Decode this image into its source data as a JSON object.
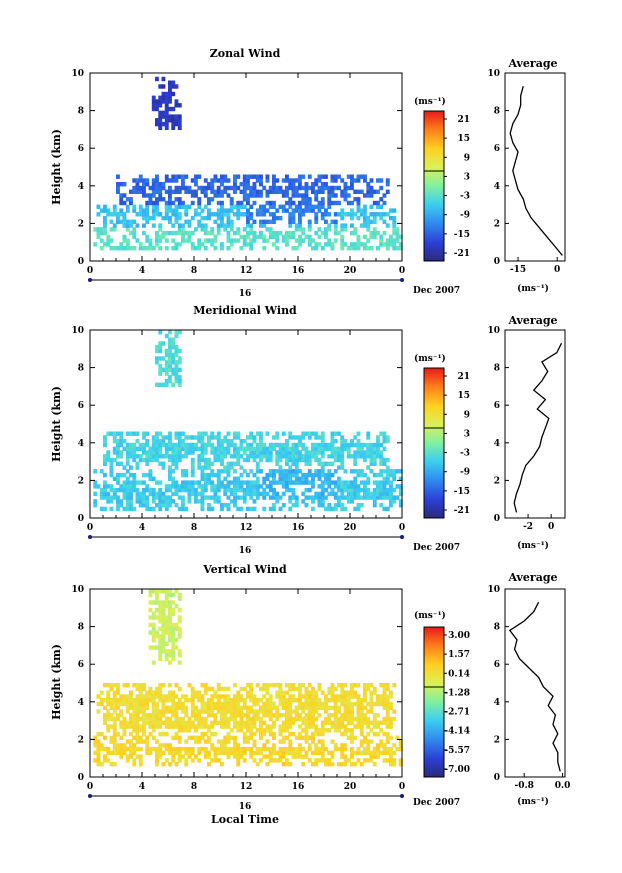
{
  "chart_data": [
    {
      "type": "heatmap",
      "title": "Zonal Wind",
      "xlabel": "",
      "ylabel": "Height (km)",
      "xlim": [
        0,
        24
      ],
      "ylim": [
        0,
        10
      ],
      "xticks": [
        "0",
        "4",
        "8",
        "12",
        "16",
        "20",
        "0"
      ],
      "yticks": [
        "0",
        "2",
        "4",
        "6",
        "8",
        "10"
      ],
      "date_tick": "16",
      "date_label": "Dec 2007",
      "colorbar": {
        "unit": "(ms⁻¹)",
        "ticks": [
          "21",
          "15",
          "9",
          "3",
          "-3",
          "-9",
          "-15",
          "-21"
        ],
        "range": [
          -24,
          24
        ]
      },
      "blobs": [
        {
          "x0": 4.6,
          "x1": 6.8,
          "y0": 7.0,
          "y1": 9.6,
          "v": -20
        },
        {
          "x0": 2.0,
          "x1": 23.0,
          "y0": 3.0,
          "y1": 4.6,
          "v": -15
        },
        {
          "x0": 12.0,
          "x1": 19.0,
          "y0": 1.8,
          "y1": 4.5,
          "v": -13
        },
        {
          "x0": 0.5,
          "x1": 23.5,
          "y0": 1.6,
          "y1": 3.0,
          "v": -7
        },
        {
          "x0": 0.2,
          "x1": 23.8,
          "y0": 0.5,
          "y1": 1.6,
          "v": -3
        }
      ],
      "average": {
        "title": "Average",
        "xlabel": "(ms⁻¹)",
        "xlim": [
          -20,
          3
        ],
        "xticks": [
          "-15",
          "0"
        ],
        "height": [
          0.3,
          0.8,
          1.3,
          1.8,
          2.3,
          2.8,
          3.3,
          3.8,
          4.3,
          4.8,
          5.3,
          5.8,
          6.3,
          6.8,
          7.3,
          7.8,
          8.3,
          8.8,
          9.3
        ],
        "values": [
          2,
          -1,
          -4,
          -7,
          -10,
          -12,
          -13,
          -15,
          -16,
          -17,
          -16,
          -15,
          -17,
          -18,
          -17,
          -15,
          -14,
          -14,
          -13
        ]
      }
    },
    {
      "type": "heatmap",
      "title": "Meridional Wind",
      "xlabel": "",
      "ylabel": "Height (km)",
      "xlim": [
        0,
        24
      ],
      "ylim": [
        0,
        10
      ],
      "xticks": [
        "0",
        "4",
        "8",
        "12",
        "16",
        "20",
        "0"
      ],
      "yticks": [
        "0",
        "2",
        "4",
        "6",
        "8",
        "10"
      ],
      "date_tick": "16",
      "date_label": "Dec 2007",
      "colorbar": {
        "unit": "(ms⁻¹)",
        "ticks": [
          "21",
          "15",
          "9",
          "3",
          "-3",
          "-9",
          "-15",
          "-21"
        ],
        "range": [
          -24,
          24
        ]
      },
      "blobs": [
        {
          "x0": 5.0,
          "x1": 7.0,
          "y0": 7.0,
          "y1": 9.8,
          "v": -4
        },
        {
          "x0": 1.0,
          "x1": 23.0,
          "y0": 2.5,
          "y1": 4.5,
          "v": -5
        },
        {
          "x0": 13.0,
          "x1": 19.0,
          "y0": 1.0,
          "y1": 4.5,
          "v": -8
        },
        {
          "x0": 0.2,
          "x1": 23.8,
          "y0": 0.3,
          "y1": 2.5,
          "v": -6
        }
      ],
      "average": {
        "title": "Average",
        "xlabel": "(ms⁻¹)",
        "xlim": [
          -4,
          1.2
        ],
        "xticks": [
          "-2",
          "0"
        ],
        "height": [
          0.3,
          0.8,
          1.3,
          1.8,
          2.3,
          2.8,
          3.3,
          3.8,
          4.3,
          4.8,
          5.3,
          5.8,
          6.3,
          6.8,
          7.3,
          7.8,
          8.3,
          8.8,
          9.3
        ],
        "values": [
          -3,
          -3.2,
          -3,
          -2.7,
          -2.5,
          -2.2,
          -1.5,
          -1.0,
          -0.8,
          -0.5,
          -0.2,
          -1.2,
          -0.5,
          -1.5,
          -0.8,
          -0.3,
          -0.8,
          0.5,
          0.9
        ]
      }
    },
    {
      "type": "heatmap",
      "title": "Vertical Wind",
      "xlabel": "Local Time",
      "ylabel": "Height (km)",
      "xlim": [
        0,
        24
      ],
      "ylim": [
        0,
        10
      ],
      "xticks": [
        "0",
        "4",
        "8",
        "12",
        "16",
        "20",
        "0"
      ],
      "yticks": [
        "0",
        "2",
        "4",
        "6",
        "8",
        "10"
      ],
      "date_tick": "16",
      "date_label": "Dec 2007",
      "colorbar": {
        "unit": "(ms⁻¹)",
        "ticks": [
          "3.00",
          "1.57",
          "0.14",
          "-1.28",
          "-2.71",
          "-4.14",
          "-5.57",
          "-7.00"
        ],
        "range": [
          -7.7,
          3.7
        ]
      },
      "blobs": [
        {
          "x0": 4.5,
          "x1": 7.0,
          "y0": 6.0,
          "y1": 9.8,
          "v": -0.8
        },
        {
          "x0": 0.5,
          "x1": 23.5,
          "y0": 2.0,
          "y1": 5.0,
          "v": 0.3
        },
        {
          "x0": 0.2,
          "x1": 23.8,
          "y0": 0.5,
          "y1": 2.0,
          "v": 0.5
        }
      ],
      "average": {
        "title": "Average",
        "xlabel": "(ms⁻¹)",
        "xlim": [
          -1.2,
          0.05
        ],
        "xticks": [
          "-0.8",
          "0.0"
        ],
        "height": [
          0.3,
          0.8,
          1.3,
          1.8,
          2.3,
          2.8,
          3.3,
          3.8,
          4.3,
          4.8,
          5.3,
          5.8,
          6.3,
          6.8,
          7.3,
          7.8,
          8.3,
          8.8,
          9.3
        ],
        "values": [
          -0.05,
          -0.1,
          -0.1,
          -0.2,
          -0.1,
          -0.2,
          -0.15,
          -0.3,
          -0.2,
          -0.4,
          -0.5,
          -0.7,
          -0.9,
          -1.0,
          -0.95,
          -1.1,
          -0.8,
          -0.6,
          -0.5
        ]
      }
    }
  ]
}
